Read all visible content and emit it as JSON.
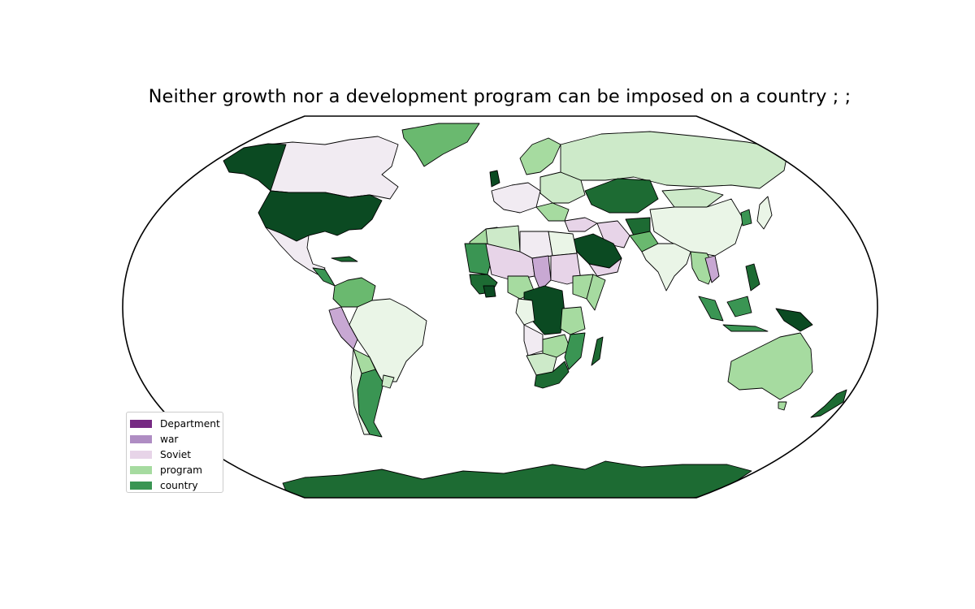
{
  "title": "Neither growth nor a development program can be imposed on a country ; ;",
  "legend": {
    "items": [
      {
        "label": "Department",
        "color": "#762a83"
      },
      {
        "label": "war",
        "color": "#af8dc3"
      },
      {
        "label": "Soviet",
        "color": "#e7d4e8"
      },
      {
        "label": "program",
        "color": "#a6dba0"
      },
      {
        "label": "country",
        "color": "#3a9553"
      }
    ]
  },
  "palette": {
    "darkest_green": "#0b4a22",
    "dark_green": "#1d6b33",
    "mid_green": "#3a9553",
    "green": "#6ab96f",
    "light_green": "#a6dba0",
    "pale_green": "#cdeac9",
    "faint_green": "#eaf5e7",
    "faint_purple": "#f1ebf2",
    "pale_purple": "#e7d4e8",
    "purple": "#c8a8d3",
    "light_purple": "#af8dc3",
    "outline": "#000000",
    "ocean": "#ffffff"
  },
  "map_type": "choropleth world map, Robinson-like projection"
}
